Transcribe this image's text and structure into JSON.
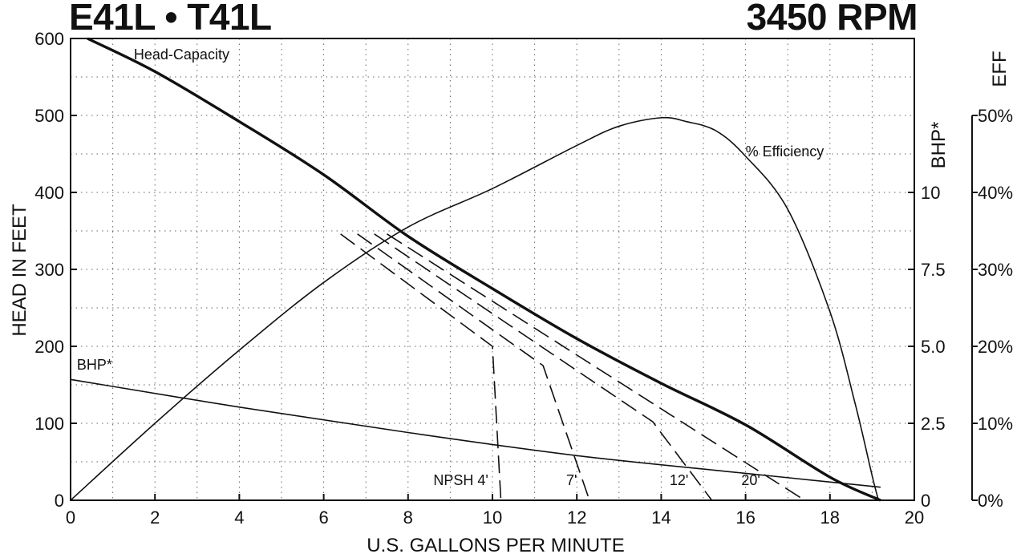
{
  "chart_data": {
    "type": "line",
    "title_left": "E41L • T41L",
    "title_right": "3450 RPM",
    "xlabel": "U.S. GALLONS PER MINUTE",
    "ylabel_left": "HEAD IN FEET",
    "ylabel_bhp": "BHP*",
    "ylabel_eff": "EFF",
    "xlim": [
      0,
      20
    ],
    "ylim": [
      0,
      600
    ],
    "x_ticks": [
      "0",
      "2",
      "4",
      "6",
      "8",
      "10",
      "12",
      "14",
      "16",
      "18",
      "20"
    ],
    "y_ticks": [
      "0",
      "100",
      "200",
      "300",
      "400",
      "500",
      "600"
    ],
    "bhp_ticks": [
      {
        "head": 0,
        "label": "0"
      },
      {
        "head": 100,
        "label": "2.5"
      },
      {
        "head": 200,
        "label": "5.0"
      },
      {
        "head": 300,
        "label": "7.5"
      },
      {
        "head": 400,
        "label": "10"
      }
    ],
    "eff_ticks": [
      {
        "head": 0,
        "label": "0%"
      },
      {
        "head": 100,
        "label": "10%"
      },
      {
        "head": 200,
        "label": "20%"
      },
      {
        "head": 300,
        "label": "30%"
      },
      {
        "head": 400,
        "label": "40%"
      },
      {
        "head": 500,
        "label": "50%"
      }
    ],
    "grid": true,
    "series": [
      {
        "name": "Head-Capacity",
        "style": "thick",
        "points": [
          [
            0.4,
            600
          ],
          [
            2,
            557
          ],
          [
            4,
            492
          ],
          [
            6,
            423
          ],
          [
            8,
            343
          ],
          [
            10,
            275
          ],
          [
            12,
            210
          ],
          [
            14,
            152
          ],
          [
            16,
            98
          ],
          [
            18,
            30
          ],
          [
            19.2,
            0
          ]
        ]
      },
      {
        "name": "% Efficiency",
        "style": "thin",
        "points": [
          [
            0,
            0
          ],
          [
            2,
            100
          ],
          [
            4,
            195
          ],
          [
            6,
            283
          ],
          [
            8,
            355
          ],
          [
            10,
            405
          ],
          [
            12,
            461
          ],
          [
            13,
            486
          ],
          [
            14,
            497
          ],
          [
            14.6,
            492
          ],
          [
            15.3,
            480
          ],
          [
            16,
            447
          ],
          [
            17,
            378
          ],
          [
            18,
            245
          ],
          [
            18.6,
            125
          ],
          [
            19,
            32
          ],
          [
            19.15,
            0
          ]
        ]
      },
      {
        "name": "BHP*",
        "style": "thin",
        "points": [
          [
            0,
            157
          ],
          [
            4,
            121
          ],
          [
            8,
            88
          ],
          [
            12,
            58
          ],
          [
            16,
            35
          ],
          [
            19.2,
            17
          ]
        ]
      },
      {
        "name": "NPSH 4'",
        "style": "dashed",
        "points": [
          [
            6.4,
            346
          ],
          [
            10,
            200
          ],
          [
            10.2,
            0
          ]
        ]
      },
      {
        "name": "7'",
        "style": "dashed",
        "points": [
          [
            6.8,
            346
          ],
          [
            11.2,
            175
          ],
          [
            12.3,
            0
          ]
        ]
      },
      {
        "name": "12'",
        "style": "dashed",
        "points": [
          [
            7.2,
            346
          ],
          [
            13.8,
            102
          ],
          [
            15.2,
            0
          ]
        ]
      },
      {
        "name": "20'",
        "style": "dashed",
        "points": [
          [
            7.5,
            346
          ],
          [
            17.4,
            0
          ]
        ]
      }
    ],
    "annotations": [
      {
        "text": "Head-Capacity",
        "x": 1.5,
        "y": 573
      },
      {
        "text": "% Efficiency",
        "x": 16.0,
        "y": 447
      },
      {
        "text": "BHP*",
        "x": 0.15,
        "y": 170
      },
      {
        "text": "NPSH 4'",
        "x": 8.6,
        "y": 20
      },
      {
        "text": "7'",
        "x": 11.75,
        "y": 20
      },
      {
        "text": "12'",
        "x": 14.2,
        "y": 20
      },
      {
        "text": "20'",
        "x": 15.9,
        "y": 20
      }
    ]
  }
}
